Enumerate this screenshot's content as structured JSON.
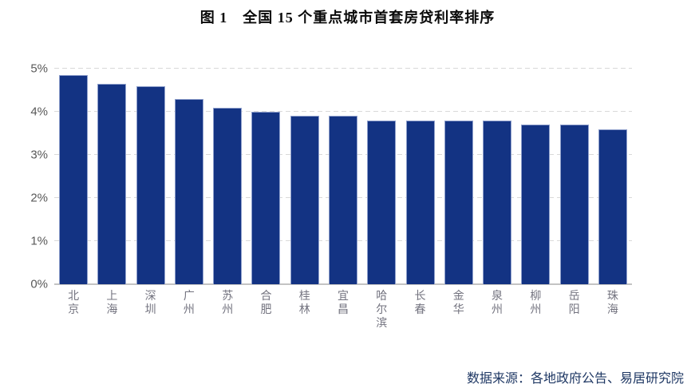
{
  "title": "图 1　全国 15 个重点城市首套房贷利率排序",
  "source_note": "数据来源：各地政府公告、易居研究院",
  "colors": {
    "bar": "#133383",
    "bar_border": "#8fa0cc",
    "grid": "#d9d9d9",
    "baseline": "#c3c3c3",
    "axis_label": "#595959",
    "category_label": "#73737f",
    "title": "#0a0a0a",
    "source": "#1f3864"
  },
  "chart_data": {
    "type": "bar",
    "title": "图 1　全国 15 个重点城市首套房贷利率排序",
    "categories": [
      "北京",
      "上海",
      "深圳",
      "广州",
      "苏州",
      "合肥",
      "桂林",
      "宜昌",
      "哈尔滨",
      "长春",
      "金华",
      "泉州",
      "柳州",
      "岳阳",
      "珠海"
    ],
    "values": [
      4.85,
      4.65,
      4.6,
      4.3,
      4.1,
      4.0,
      3.9,
      3.9,
      3.8,
      3.8,
      3.8,
      3.8,
      3.7,
      3.7,
      3.6
    ],
    "xlabel": "",
    "ylabel": "",
    "ylim": [
      0,
      5
    ],
    "yticks": [
      "0%",
      "1%",
      "2%",
      "3%",
      "4%",
      "5%"
    ],
    "grid": true,
    "gridline_style": "dashed",
    "legend": false,
    "source": "数据来源：各地政府公告、易居研究院"
  }
}
